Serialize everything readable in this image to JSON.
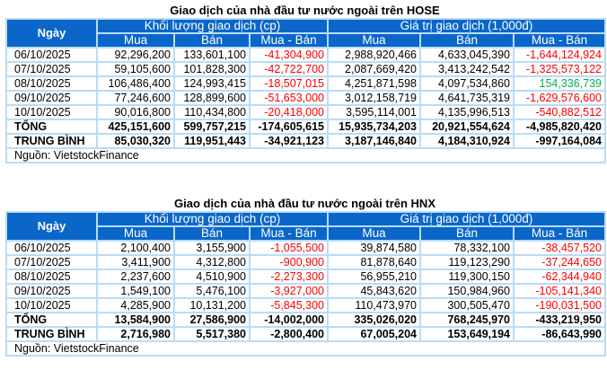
{
  "colors": {
    "header": "#0a66c8",
    "negative": "#ff0000",
    "positive": "#00b050",
    "border": "#b8dcf7"
  },
  "headers": {
    "day": "Ngày",
    "volume": "Khối lượng giao dịch (cp)",
    "value": "Giá trị giao dịch (1,000đ)",
    "buy": "Mua",
    "sell": "Bán",
    "net": "Mua - Bán"
  },
  "tables": [
    {
      "title": "Giao dịch của nhà đầu tư nước ngoài trên HOSE",
      "rows": [
        [
          "06/10/2025",
          "92,296,200",
          "133,601,100",
          "-41,304,900",
          "2,988,920,466",
          "4,633,045,390",
          "-1,644,124,924"
        ],
        [
          "07/10/2025",
          "59,105,600",
          "101,828,300",
          "-42,722,700",
          "2,087,669,420",
          "3,413,242,542",
          "-1,325,573,122"
        ],
        [
          "08/10/2025",
          "106,486,400",
          "124,993,415",
          "-18,507,015",
          "4,251,871,598",
          "4,097,534,860",
          "154,336,739"
        ],
        [
          "09/10/2025",
          "77,246,600",
          "128,899,600",
          "-51,653,000",
          "3,012,158,719",
          "4,641,735,319",
          "-1,629,576,600"
        ],
        [
          "10/10/2025",
          "90,016,800",
          "110,434,800",
          "-20,418,000",
          "3,595,114,001",
          "4,135,996,513",
          "-540,882,512"
        ],
        [
          "TỔNG",
          "425,151,600",
          "599,757,215",
          "-174,605,615",
          "15,935,734,203",
          "20,921,554,624",
          "-4,985,820,420"
        ],
        [
          "TRUNG BÌNH",
          "85,030,320",
          "119,951,443",
          "-34,921,123",
          "3,187,146,840",
          "4,184,310,924",
          "-997,164,084"
        ]
      ],
      "source": "Nguồn: VietstockFinance"
    },
    {
      "title": "Giao dịch của nhà đầu tư nước ngoài trên HNX",
      "rows": [
        [
          "06/10/2025",
          "2,100,400",
          "3,155,900",
          "-1,055,500",
          "39,874,580",
          "78,332,100",
          "-38,457,520"
        ],
        [
          "07/10/2025",
          "3,411,900",
          "4,312,800",
          "-900,900",
          "81,878,640",
          "119,123,290",
          "-37,244,650"
        ],
        [
          "08/10/2025",
          "2,237,600",
          "4,510,900",
          "-2,273,300",
          "56,955,210",
          "119,300,150",
          "-62,344,940"
        ],
        [
          "09/10/2025",
          "1,549,100",
          "5,476,100",
          "-3,927,000",
          "45,843,620",
          "150,984,960",
          "-105,141,340"
        ],
        [
          "10/10/2025",
          "4,285,900",
          "10,131,200",
          "-5,845,300",
          "110,473,970",
          "300,505,470",
          "-190,031,500"
        ],
        [
          "TỔNG",
          "13,584,900",
          "27,586,900",
          "-14,002,000",
          "335,026,020",
          "768,245,970",
          "-433,219,950"
        ],
        [
          "TRUNG BÌNH",
          "2,716,980",
          "5,517,380",
          "-2,800,400",
          "67,005,204",
          "153,649,194",
          "-86,643,990"
        ]
      ],
      "source": "Nguồn: VietstockFinance"
    }
  ]
}
